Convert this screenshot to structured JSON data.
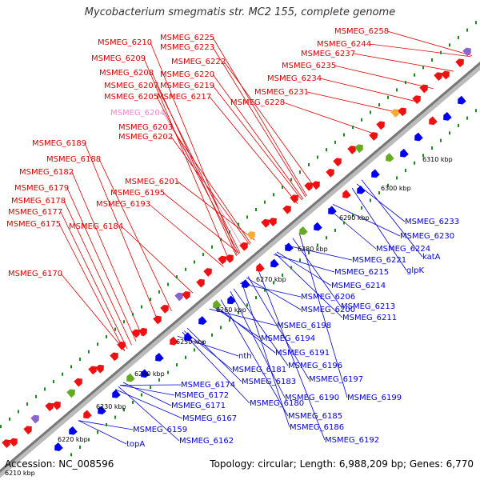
{
  "title": "Mycobacterium smegmatis str. MC2 155, complete genome",
  "footer": {
    "accession_label": "Accession:",
    "accession": "NC_008596",
    "topology_label": "Topology:",
    "topology": "circular;",
    "length_label": "Length:",
    "length": "6,988,209 bp;",
    "genes_label": "Genes:",
    "genes": "6,770"
  },
  "colors": {
    "forward_label": "#dd0000",
    "reverse_label": "#0000dd",
    "pink_label": "#ee88cc",
    "backbone": "#888888",
    "tick_dot": "#1a8a1a"
  },
  "ticks": [
    "6210 kbp",
    "6220 kbp",
    "6230 kbp",
    "6240 kbp",
    "6250 kbp",
    "6260 kbp",
    "6270 kbp",
    "6280 kbp",
    "6290 kbp",
    "6300 kbp",
    "6310 kbp"
  ],
  "forward_genes": [
    "MSMEG_6170",
    "MSMEG_6175",
    "MSMEG_6177",
    "MSMEG_6178",
    "MSMEG_6179",
    "MSMEG_6182",
    "MSMEG_6184",
    "MSMEG_6188",
    "MSMEG_6189",
    "MSMEG_6193",
    "MSMEG_6195",
    "MSMEG_6201",
    "MSMEG_6202",
    "MSMEG_6203",
    "MSMEG_6204",
    "MSMEG_6205",
    "MSMEG_6207",
    "MSMEG_6208",
    "MSMEG_6209",
    "MSMEG_6210",
    "MSMEG_6217",
    "MSMEG_6219",
    "MSMEG_6220",
    "MSMEG_6222",
    "MSMEG_6223",
    "MSMEG_6225",
    "MSMEG_6228",
    "MSMEG_6231",
    "MSMEG_6234",
    "MSMEG_6235",
    "MSMEG_6237",
    "MSMEG_6244",
    "MSMEG_6258"
  ],
  "reverse_genes": [
    "topA",
    "MSMEG_6159",
    "MSMEG_6162",
    "MSMEG_6167",
    "MSMEG_6171",
    "MSMEG_6172",
    "MSMEG_6174",
    "MSMEG_6180",
    "MSMEG_6181",
    "MSMEG_6183",
    "nth",
    "MSMEG_6185",
    "MSMEG_6186",
    "MSMEG_6190",
    "MSMEG_6191",
    "MSMEG_6192",
    "MSMEG_6194",
    "MSMEG_6196",
    "MSMEG_6197",
    "MSMEG_6198",
    "MSMEG_6199",
    "MSMEG_6200",
    "MSMEG_6206",
    "MSMEG_6211",
    "MSMEG_6213",
    "MSMEG_6214",
    "MSMEG_6215",
    "MSMEG_6221",
    "MSMEG_6224",
    "glpK",
    "katA",
    "MSMEG_6230",
    "MSMEG_6233"
  ]
}
